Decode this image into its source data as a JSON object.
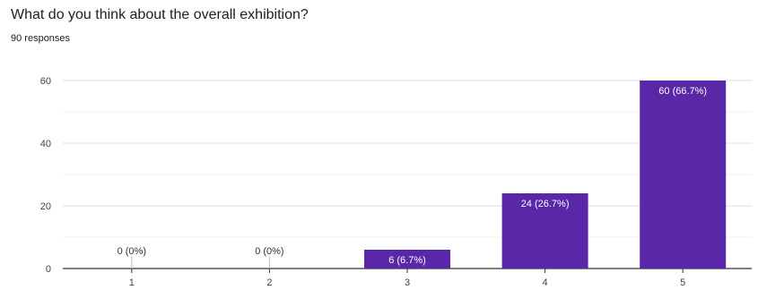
{
  "header": {
    "question": "What do you think about the overall exhibition?",
    "responses": "90 responses"
  },
  "chart_data": {
    "type": "bar",
    "categories": [
      "1",
      "2",
      "3",
      "4",
      "5"
    ],
    "values": [
      0,
      0,
      6,
      24,
      60
    ],
    "data_labels": [
      "0 (0%)",
      "0 (0%)",
      "6 (6.7%)",
      "24 (26.7%)",
      "60 (66.7%)"
    ],
    "ylim": [
      0,
      60
    ],
    "yticks": [
      0,
      20,
      40,
      60
    ],
    "grid": true,
    "bar_color": "#5a27a8",
    "title": "",
    "xlabel": "",
    "ylabel": ""
  }
}
